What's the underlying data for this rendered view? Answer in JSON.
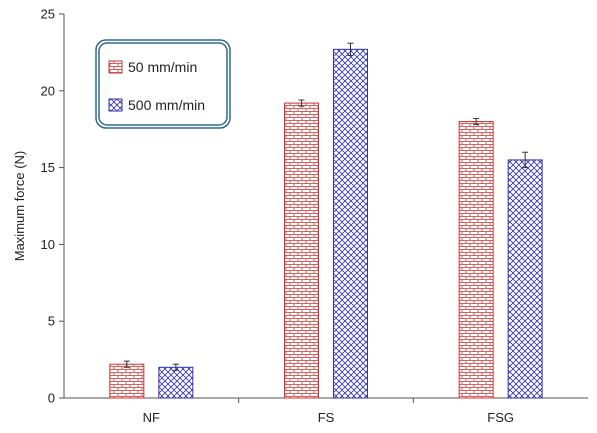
{
  "chart_data": {
    "type": "bar",
    "categories": [
      "NF",
      "FS",
      "FSG"
    ],
    "series": [
      {
        "name": "50 mm/min",
        "values": [
          2.2,
          19.2,
          18.0
        ],
        "errors": [
          0.2,
          0.2,
          0.2
        ],
        "color": "#cc3333",
        "pattern": "brick"
      },
      {
        "name": "500 mm/min",
        "values": [
          2.0,
          22.7,
          15.5
        ],
        "errors": [
          0.2,
          0.4,
          0.5
        ],
        "color": "#3333aa",
        "pattern": "diagonal-cross"
      }
    ],
    "xlabel": "",
    "ylabel": "Maximum force (N)",
    "ylim": [
      0,
      25
    ],
    "yticks": [
      0,
      5,
      10,
      15,
      20,
      25
    ],
    "grid": false,
    "legend_position": "top-left",
    "legend_border_color": "#2e6a8e"
  }
}
